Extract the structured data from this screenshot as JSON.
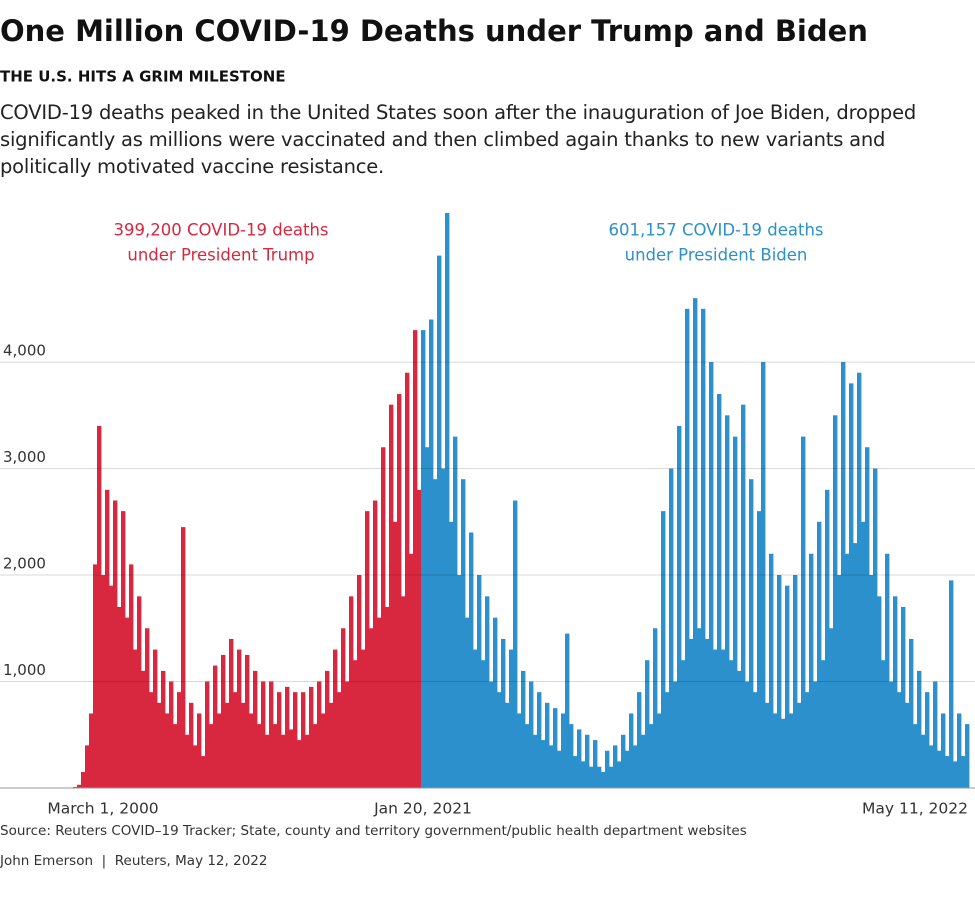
{
  "chart_data": {
    "type": "bar",
    "title": "One Million COVID-19 Deaths under Trump and Biden",
    "subtitle": "THE U.S. HITS A GRIM MILESTONE",
    "description": "COVID-19 deaths peaked in the United States soon after the inauguration of Joe Biden, dropped significantly as millions were vaccinated and then climbed again thanks to new variants and politically motivated vaccine resistance.",
    "source": "Source: Reuters COVID–19 Tracker; State, county and territory government/public health department websites",
    "credit": "John Emerson  |  Reuters, May 12, 2022",
    "ylim": [
      0,
      5400
    ],
    "yticks": [
      {
        "value": 1000,
        "label": "1,000"
      },
      {
        "value": 2000,
        "label": "2,000"
      },
      {
        "value": 3000,
        "label": "3,000"
      },
      {
        "value": 4000,
        "label": "4,000"
      }
    ],
    "grid": true,
    "categories": [
      null,
      null,
      null,
      null,
      null,
      null,
      null,
      null,
      null,
      null,
      null,
      null,
      null,
      null,
      "March 1, 2000",
      null,
      null,
      null,
      null,
      null,
      null,
      null,
      null,
      null,
      null,
      null,
      null,
      null,
      null,
      null,
      null,
      null,
      null,
      null,
      null,
      null,
      null,
      null,
      null,
      null,
      null,
      null,
      null,
      null,
      null,
      null,
      null,
      null,
      null,
      null,
      null,
      null,
      null,
      null,
      null,
      null,
      null,
      null,
      null,
      null,
      null,
      null,
      null,
      null,
      null,
      null,
      null,
      null,
      null,
      null,
      null,
      null,
      null,
      null,
      null,
      null,
      null,
      null,
      null,
      null,
      null,
      null,
      null,
      null,
      null,
      null,
      null,
      null,
      null,
      null,
      null,
      null,
      null,
      null,
      "Jan 20, 2021",
      null,
      null,
      null,
      null,
      null,
      null,
      null,
      null,
      null,
      null,
      null,
      null,
      null,
      null,
      null,
      null,
      null,
      null,
      null,
      null,
      null,
      null,
      null,
      null,
      null,
      null,
      null,
      null,
      null,
      null,
      null,
      null,
      null,
      null,
      null,
      null,
      null,
      null,
      null,
      null,
      null,
      null,
      null,
      null,
      null,
      null,
      null,
      null,
      null,
      null,
      null,
      null,
      null,
      null,
      null,
      null,
      null,
      null,
      null,
      null,
      null,
      null,
      null,
      null,
      null,
      null,
      null,
      null,
      null,
      null,
      null,
      null,
      null,
      null,
      null,
      null,
      null,
      null,
      null,
      null,
      null,
      null,
      null,
      null,
      null,
      null,
      null,
      null,
      null,
      null,
      null,
      null,
      null,
      null,
      null,
      null,
      null,
      null,
      null,
      null,
      null,
      null,
      null,
      null,
      null,
      null,
      null,
      null,
      null,
      null,
      null,
      null,
      null,
      null,
      null,
      null,
      null,
      null,
      null,
      null,
      null,
      null,
      "May 11, 2022",
      null,
      null,
      null,
      null,
      null,
      null,
      null,
      null,
      null,
      null,
      null,
      null,
      null
    ],
    "series": [
      {
        "name": [
          "399,200 COVID-19 deaths",
          "under President Trump"
        ],
        "color": "#d7283f",
        "values": [
          0,
          0,
          0,
          0,
          0,
          0,
          2,
          10,
          30,
          150,
          400,
          700,
          2100,
          3400,
          2000,
          2800,
          1900,
          2700,
          1700,
          2600,
          1600,
          2100,
          1300,
          1800,
          1100,
          1500,
          900,
          1300,
          800,
          1100,
          700,
          1000,
          600,
          900,
          2450,
          500,
          800,
          400,
          700,
          300,
          1000,
          600,
          1150,
          700,
          1250,
          800,
          1400,
          900,
          1300,
          800,
          1250,
          700,
          1100,
          600,
          1000,
          500,
          1000,
          600,
          900,
          500,
          950,
          550,
          900,
          450,
          900,
          500,
          950,
          600,
          1000,
          700,
          1100,
          800,
          1300,
          900,
          1500,
          1000,
          1800,
          1200,
          2000,
          1300,
          2600,
          1500,
          2700,
          1600,
          3200,
          1700,
          3600,
          2500,
          3700,
          1800,
          3900,
          2200,
          4300,
          2800,
          null,
          null,
          null,
          null,
          null,
          null,
          null,
          null,
          null,
          null,
          null,
          null,
          null,
          null,
          null,
          null,
          null,
          null,
          null,
          null,
          null,
          null,
          null,
          null,
          null,
          null,
          null,
          null,
          null,
          null,
          null,
          null,
          null,
          null,
          null,
          null,
          null,
          null,
          null,
          null,
          null,
          null,
          null,
          null,
          null,
          null,
          null,
          null,
          null,
          null,
          null,
          null,
          null,
          null,
          null,
          null,
          null,
          null,
          null,
          null,
          null,
          null,
          null,
          null,
          null,
          null,
          null,
          null,
          null,
          null,
          null,
          null,
          null,
          null,
          null,
          null,
          null,
          null,
          null,
          null,
          null,
          null,
          null,
          null,
          null,
          null,
          null,
          null,
          null,
          null,
          null,
          null,
          null,
          null,
          null,
          null,
          null,
          null,
          null,
          null,
          null,
          null,
          null,
          null,
          null,
          null,
          null,
          null,
          null,
          null,
          null,
          null,
          null,
          null,
          null,
          null,
          null,
          null,
          null,
          null,
          null,
          null,
          null,
          null,
          null,
          null,
          null,
          null,
          null,
          null,
          null,
          null,
          null,
          null,
          null,
          null,
          null
        ]
      },
      {
        "name": [
          "601,157 COVID-19 deaths",
          "under President Biden"
        ],
        "color": "#2b90cb",
        "values": [
          null,
          null,
          null,
          null,
          null,
          null,
          null,
          null,
          null,
          null,
          null,
          null,
          null,
          null,
          null,
          null,
          null,
          null,
          null,
          null,
          null,
          null,
          null,
          null,
          null,
          null,
          null,
          null,
          null,
          null,
          null,
          null,
          null,
          null,
          null,
          null,
          null,
          null,
          null,
          null,
          null,
          null,
          null,
          null,
          null,
          null,
          null,
          null,
          null,
          null,
          null,
          null,
          null,
          null,
          null,
          null,
          null,
          null,
          null,
          null,
          null,
          null,
          null,
          null,
          null,
          null,
          null,
          null,
          null,
          null,
          null,
          null,
          null,
          null,
          null,
          null,
          null,
          null,
          null,
          null,
          null,
          null,
          null,
          null,
          null,
          null,
          null,
          null,
          null,
          null,
          null,
          null,
          null,
          null,
          4300,
          3200,
          4400,
          2900,
          5000,
          3000,
          5400,
          2500,
          3300,
          2000,
          2900,
          1600,
          2400,
          1300,
          2000,
          1200,
          1800,
          1000,
          1600,
          900,
          1400,
          800,
          1300,
          2700,
          700,
          1100,
          600,
          1000,
          500,
          900,
          450,
          800,
          400,
          750,
          350,
          700,
          1450,
          600,
          300,
          550,
          250,
          500,
          200,
          450,
          200,
          150,
          350,
          200,
          400,
          250,
          500,
          350,
          700,
          400,
          900,
          500,
          1200,
          600,
          1500,
          700,
          2600,
          900,
          3000,
          1000,
          3400,
          1200,
          4500,
          1400,
          4600,
          1500,
          4500,
          1400,
          4000,
          1300,
          3700,
          1300,
          3500,
          1200,
          3300,
          1100,
          3600,
          1000,
          2900,
          900,
          2600,
          4000,
          800,
          2200,
          700,
          2000,
          650,
          1900,
          700,
          2000,
          800,
          3300,
          900,
          2200,
          1000,
          2500,
          1200,
          2800,
          1500,
          3500,
          2000,
          4000,
          2200,
          3800,
          2300,
          3900,
          2500,
          3200,
          2000,
          3000,
          1800,
          1200,
          2200,
          1000,
          1800,
          900,
          1700,
          800,
          1400,
          600,
          1100,
          500,
          900,
          400,
          1000,
          350,
          700,
          300,
          1950,
          250,
          700,
          300,
          600
        ]
      }
    ]
  }
}
